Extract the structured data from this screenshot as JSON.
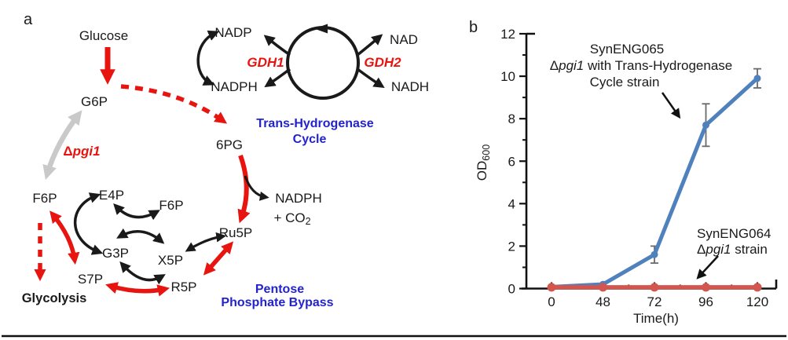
{
  "panel_a": {
    "label": "a",
    "nodes": {
      "glucose": "Glucose",
      "g6p": "G6P",
      "pg6": "6PG",
      "f6p": "F6P",
      "e4p": "E4P",
      "f6p2": "F6P",
      "g3p": "G3P",
      "x5p": "X5P",
      "s7p": "S7P",
      "r5p": "R5P",
      "ru5p": "Ru5P",
      "nadp": "NADP",
      "nadph": "NADPH",
      "nad": "NAD",
      "nadh": "NADH"
    },
    "byproduct": {
      "nadph": "NADPH",
      "plus_co": "+ CO",
      "sub": "2"
    },
    "enzymes": {
      "gdh1": "GDH1",
      "gdh2": "GDH2"
    },
    "deletion": {
      "delta": "Δ",
      "gene": "pgi1"
    },
    "titles": {
      "trans_line1": "Trans-Hydrogenase",
      "trans_line2": "Cycle",
      "ppb_line1": "Pentose",
      "ppb_line2": "Phosphate Bypass",
      "glycolysis": "Glycolysis"
    },
    "colors": {
      "red": "#e8140f",
      "blue_text": "#2323cd",
      "gray": "#c9c9c9",
      "black": "#1a1a1a"
    }
  },
  "panel_b": {
    "label": "b",
    "annotations": {
      "top": {
        "line1": "SynENG065",
        "line2_delta": "Δ",
        "line2_gene": "pgi1",
        "line2_rest": " with Trans-Hydrogenase",
        "line3": "Cycle strain"
      },
      "bottom": {
        "line1": "SynENG064",
        "line2_delta": "Δ",
        "line2_gene": "pgi1",
        "line2_rest": " strain"
      }
    }
  },
  "chart_data": {
    "type": "line",
    "title": "",
    "xlabel": "Time(h)",
    "ylabel": "OD600",
    "ylabel_main": "OD",
    "ylabel_sub": "600",
    "x_categories": [
      0,
      48,
      72,
      96,
      120
    ],
    "x_tick_labels": [
      "0",
      "48",
      "72",
      "96",
      "120"
    ],
    "y_ticks": [
      0,
      2,
      4,
      6,
      8,
      10,
      12
    ],
    "y_minor_ticks": [
      1,
      3,
      5,
      7,
      9,
      11
    ],
    "ylim": [
      0,
      12
    ],
    "grid": false,
    "legend_position": "annotated-arrows",
    "series": [
      {
        "name": "SynENG065 Δpgi1 with Trans-Hydrogenase Cycle strain",
        "color": "#4f81bd",
        "values": [
          0.08,
          0.2,
          1.6,
          7.7,
          9.9
        ],
        "errors": [
          0,
          0,
          0.4,
          1.0,
          0.45
        ],
        "marker": "circle",
        "marker_radius": 4.5,
        "line_width": 5
      },
      {
        "name": "SynENG064 Δpgi1 strain",
        "color": "#d4544e",
        "values": [
          0.06,
          0.06,
          0.06,
          0.06,
          0.06
        ],
        "errors": [
          0,
          0,
          0,
          0,
          0
        ],
        "marker": "circle",
        "marker_radius": 5.5,
        "line_width": 5.5
      }
    ],
    "error_bar_color": "#6a6a6a"
  }
}
